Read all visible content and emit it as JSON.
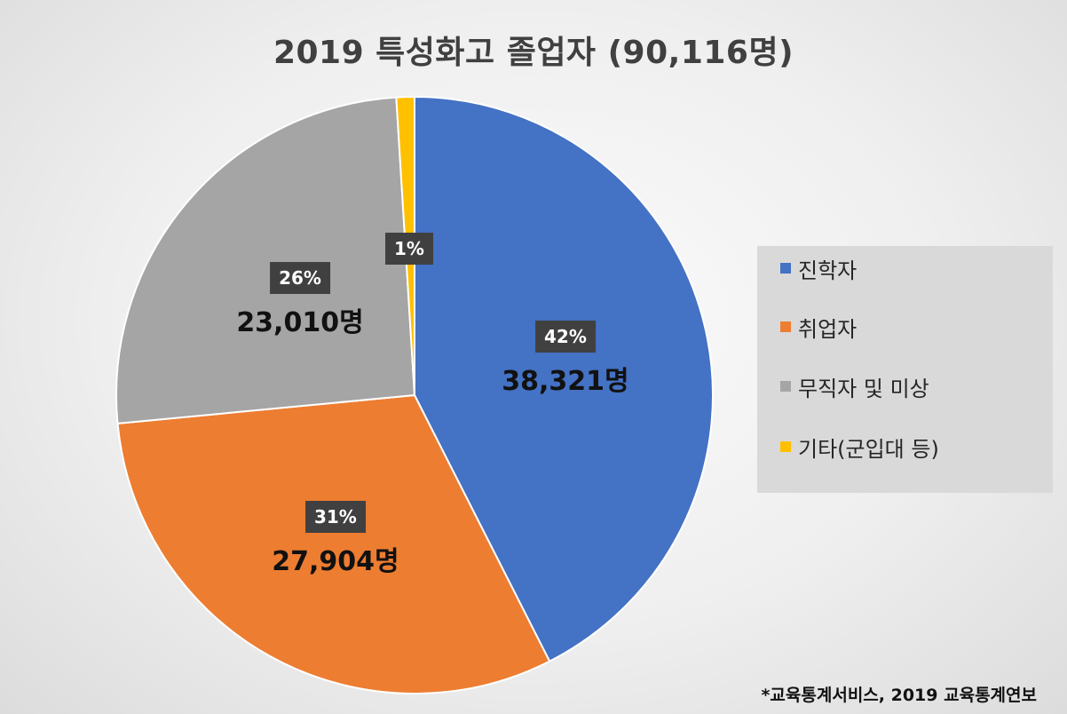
{
  "chart_data": {
    "type": "pie",
    "title": "2019 특성화고 졸업자 (90,116명)",
    "categories": [
      "진학자",
      "취업자",
      "무직자 및 미상",
      "기타(군입대 등)"
    ],
    "values": [
      38321,
      27904,
      23010,
      881
    ],
    "percent_labels": [
      "42%",
      "31%",
      "26%",
      "1%"
    ],
    "count_labels": [
      "38,321명",
      "27,904명",
      "23,010명",
      ""
    ],
    "colors": [
      "#4472C4",
      "#ED7D31",
      "#A5A5A5",
      "#FFC000"
    ],
    "legend_position": "right"
  },
  "source": "*교육통계서비스, 2019 교육통계연보"
}
